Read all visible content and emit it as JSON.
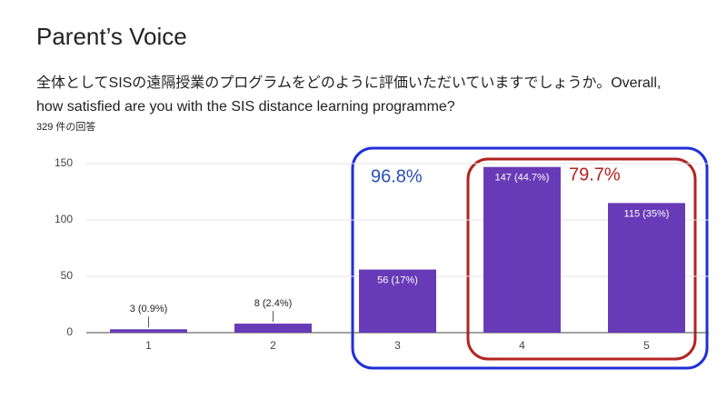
{
  "chart_data": {
    "type": "bar",
    "title": "Parent’s Voice",
    "subtitle_lines": [
      "全体としてSISの遠隔授業のプログラムをどのように評価いただいていますでしょうか。Overall,",
      "how satisfied are you with the SIS distance learning programme?"
    ],
    "response_count": "329 件の回答",
    "categories": [
      "1",
      "2",
      "3",
      "4",
      "5"
    ],
    "values": [
      3,
      8,
      56,
      147,
      115
    ],
    "value_labels": [
      "3 (0.9%)",
      "8 (2.4%)",
      "56 (17%)",
      "147 (44.7%)",
      "115 (35%)"
    ],
    "color": "#673ab7",
    "ylim": [
      0,
      150
    ],
    "yticks": [
      0,
      50,
      100,
      150
    ],
    "grid": true,
    "annotations": [
      {
        "text": "96.8%",
        "color": "#2a4fb5"
      },
      {
        "text": "79.7%",
        "color": "#b3231f"
      }
    ]
  }
}
